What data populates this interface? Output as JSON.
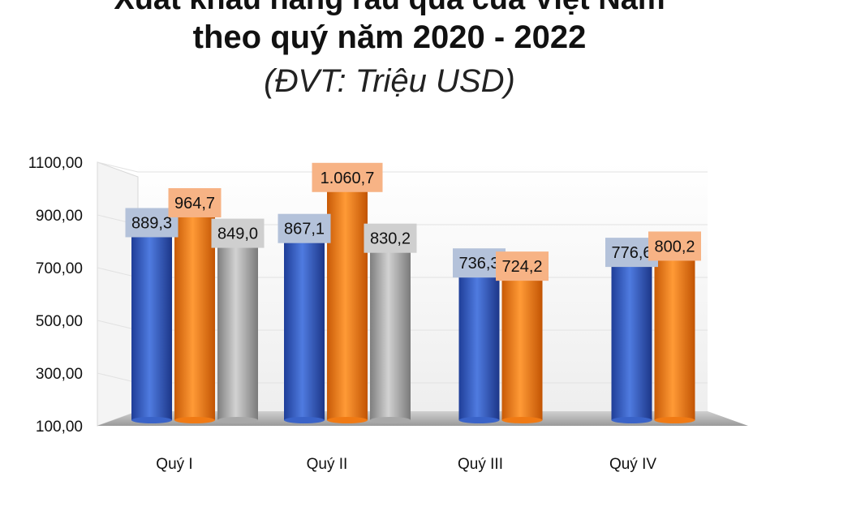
{
  "title_line1": "Xuất khẩu hàng rau quả của Việt Nam",
  "title_line2": "theo quý năm 2020 - 2022",
  "subtitle": "(ĐVT: Triệu USD)",
  "chart_data": {
    "type": "bar",
    "categories": [
      "Quý I",
      "Quý II",
      "Quý III",
      "Quý IV"
    ],
    "series": [
      {
        "values": [
          889.3,
          867.1,
          736.3,
          776.6
        ],
        "labels": [
          "889,3",
          "867,1",
          "736,3",
          "776,6"
        ],
        "color": "#3a63c8"
      },
      {
        "values": [
          964.7,
          1060.7,
          724.2,
          800.2
        ],
        "labels": [
          "964,7",
          "1.060,7",
          "724,2",
          "800,2"
        ],
        "color": "#f07a14"
      },
      {
        "values": [
          849.0,
          830.2,
          null,
          null
        ],
        "labels": [
          "849,0",
          "830,2",
          "",
          ""
        ],
        "color": "#a8a8a8"
      }
    ],
    "label_bg": [
      "#b4c2da",
      "#f7b385",
      "#cfcfcf"
    ],
    "yticks": [
      "100,00",
      "300,00",
      "500,00",
      "700,00",
      "900,00",
      "1100,00"
    ],
    "ylim": [
      100,
      1100
    ],
    "grid": true,
    "legend": "none"
  }
}
